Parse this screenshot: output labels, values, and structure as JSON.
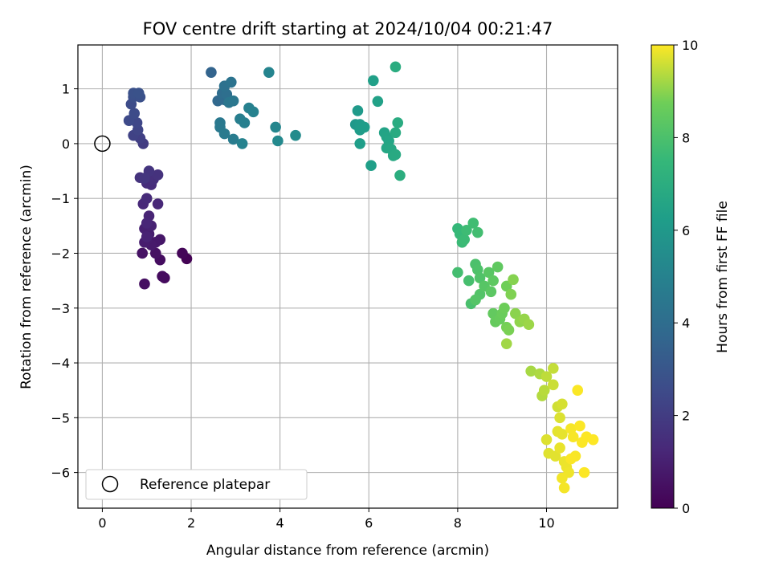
{
  "chart_data": {
    "type": "scatter",
    "title": "FOV centre drift starting at 2024/10/04 00:21:47",
    "xlabel": "Angular distance from reference (arcmin)",
    "ylabel": "Rotation from reference (arcmin)",
    "xlim": [
      -0.55,
      11.6
    ],
    "ylim": [
      -6.65,
      1.8
    ],
    "xticks": [
      0,
      2,
      4,
      6,
      8,
      10
    ],
    "yticks": [
      1,
      0,
      -1,
      -2,
      -3,
      -4,
      -5,
      -6
    ],
    "xtick_labels": [
      "0",
      "2",
      "4",
      "6",
      "8",
      "10"
    ],
    "ytick_labels": [
      "1",
      "0",
      "−1",
      "−2",
      "−3",
      "−4",
      "−5",
      "−6"
    ],
    "grid": true,
    "colormap": "viridis",
    "colorbar": {
      "label": "Hours from first FF file",
      "range": [
        0,
        10
      ],
      "ticks": [
        0,
        2,
        4,
        6,
        8,
        10
      ],
      "tick_labels": [
        "0",
        "2",
        "4",
        "6",
        "8",
        "10"
      ]
    },
    "legend": {
      "placement": "lower-left",
      "entries": [
        "Reference platepar"
      ]
    },
    "reference_point": {
      "name": "Reference platepar",
      "x": 0,
      "y": 0,
      "marker": "open-circle"
    },
    "points": [
      [
        1.9,
        -2.1,
        0.05
      ],
      [
        1.8,
        -2.0,
        0.15
      ],
      [
        1.4,
        -2.45,
        0.3
      ],
      [
        1.35,
        -2.42,
        0.35
      ],
      [
        1.3,
        -2.12,
        0.4
      ],
      [
        1.2,
        -2.0,
        0.5
      ],
      [
        0.95,
        -2.56,
        0.45
      ],
      [
        0.9,
        -2.0,
        0.55
      ],
      [
        1.3,
        -1.75,
        0.7
      ],
      [
        1.2,
        -1.8,
        0.75
      ],
      [
        1.1,
        -1.85,
        0.8
      ],
      [
        1.0,
        -1.75,
        0.85
      ],
      [
        0.95,
        -1.8,
        0.9
      ],
      [
        1.05,
        -1.65,
        0.95
      ],
      [
        0.95,
        -1.55,
        1.0
      ],
      [
        1.1,
        -1.5,
        1.05
      ],
      [
        1.0,
        -1.7,
        1.1
      ],
      [
        1.05,
        -1.32,
        1.15
      ],
      [
        1.0,
        -1.45,
        1.2
      ],
      [
        1.25,
        -1.1,
        1.25
      ],
      [
        0.92,
        -1.1,
        1.3
      ],
      [
        1.0,
        -1.0,
        1.35
      ],
      [
        1.1,
        -0.75,
        1.4
      ],
      [
        1.0,
        -0.72,
        1.45
      ],
      [
        1.15,
        -0.65,
        1.5
      ],
      [
        1.05,
        -0.6,
        1.55
      ],
      [
        1.25,
        -0.57,
        1.6
      ],
      [
        0.85,
        -0.62,
        1.65
      ],
      [
        1.05,
        -0.5,
        1.7
      ],
      [
        0.95,
        -0.63,
        1.75
      ],
      [
        0.92,
        0.0,
        2.0
      ],
      [
        0.85,
        0.1,
        2.1
      ],
      [
        0.7,
        0.15,
        2.2
      ],
      [
        0.8,
        0.25,
        2.3
      ],
      [
        0.78,
        0.38,
        2.4
      ],
      [
        0.6,
        0.42,
        2.5
      ],
      [
        0.72,
        0.55,
        2.55
      ],
      [
        0.65,
        0.72,
        2.6
      ],
      [
        0.7,
        0.85,
        2.7
      ],
      [
        0.85,
        0.85,
        2.75
      ],
      [
        0.7,
        0.92,
        2.8
      ],
      [
        0.82,
        0.92,
        2.85
      ],
      [
        2.45,
        1.3,
        3.6
      ],
      [
        2.6,
        0.78,
        3.8
      ],
      [
        2.75,
        0.8,
        3.9
      ],
      [
        2.7,
        0.92,
        4.0
      ],
      [
        2.8,
        0.9,
        4.1
      ],
      [
        2.75,
        1.05,
        4.2
      ],
      [
        2.9,
        1.12,
        4.3
      ],
      [
        2.85,
        0.75,
        4.4
      ],
      [
        2.95,
        0.78,
        4.45
      ],
      [
        2.65,
        0.38,
        4.5
      ],
      [
        2.65,
        0.3,
        4.55
      ],
      [
        2.75,
        0.18,
        4.6
      ],
      [
        2.95,
        0.08,
        4.7
      ],
      [
        3.1,
        0.45,
        4.8
      ],
      [
        3.2,
        0.38,
        4.85
      ],
      [
        3.3,
        0.65,
        4.9
      ],
      [
        3.4,
        0.58,
        4.95
      ],
      [
        3.15,
        0.0,
        5.0
      ],
      [
        3.75,
        1.3,
        5.1
      ],
      [
        3.9,
        0.3,
        5.2
      ],
      [
        3.95,
        0.05,
        5.3
      ],
      [
        4.35,
        0.15,
        5.4
      ],
      [
        5.7,
        0.35,
        6.0
      ],
      [
        5.75,
        0.6,
        6.05
      ],
      [
        5.8,
        0.35,
        6.1
      ],
      [
        5.8,
        0.25,
        6.15
      ],
      [
        5.9,
        0.3,
        6.2
      ],
      [
        5.8,
        0.0,
        6.25
      ],
      [
        6.05,
        -0.4,
        6.3
      ],
      [
        6.1,
        1.15,
        6.35
      ],
      [
        6.2,
        0.77,
        6.4
      ],
      [
        6.35,
        0.2,
        6.5
      ],
      [
        6.4,
        0.12,
        6.55
      ],
      [
        6.45,
        0.05,
        6.6
      ],
      [
        6.4,
        -0.08,
        6.65
      ],
      [
        6.5,
        -0.1,
        6.7
      ],
      [
        6.55,
        -0.22,
        6.75
      ],
      [
        6.6,
        -0.2,
        6.8
      ],
      [
        6.6,
        0.2,
        6.85
      ],
      [
        6.65,
        0.38,
        6.9
      ],
      [
        6.6,
        1.4,
        6.95
      ],
      [
        6.7,
        -0.58,
        7.0
      ],
      [
        8.0,
        -1.55,
        7.5
      ],
      [
        8.05,
        -1.65,
        7.55
      ],
      [
        8.1,
        -1.8,
        7.6
      ],
      [
        8.15,
        -1.75,
        7.65
      ],
      [
        8.2,
        -1.58,
        7.7
      ],
      [
        8.35,
        -1.45,
        7.75
      ],
      [
        8.45,
        -1.62,
        7.8
      ],
      [
        8.0,
        -2.35,
        7.85
      ],
      [
        8.25,
        -2.5,
        7.9
      ],
      [
        8.3,
        -2.92,
        7.95
      ],
      [
        8.4,
        -2.2,
        8.0
      ],
      [
        8.45,
        -2.3,
        8.05
      ],
      [
        8.5,
        -2.45,
        8.1
      ],
      [
        8.5,
        -2.75,
        8.15
      ],
      [
        8.4,
        -2.85,
        8.2
      ],
      [
        8.6,
        -2.6,
        8.25
      ],
      [
        8.7,
        -2.35,
        8.3
      ],
      [
        8.75,
        -2.7,
        8.35
      ],
      [
        8.8,
        -2.5,
        8.4
      ],
      [
        8.9,
        -2.25,
        8.45
      ],
      [
        8.8,
        -3.1,
        8.5
      ],
      [
        8.85,
        -3.25,
        8.55
      ],
      [
        8.95,
        -3.2,
        8.6
      ],
      [
        9.0,
        -3.1,
        8.65
      ],
      [
        9.05,
        -3.0,
        8.7
      ],
      [
        9.1,
        -2.6,
        8.75
      ],
      [
        9.1,
        -3.35,
        8.8
      ],
      [
        9.15,
        -3.4,
        8.85
      ],
      [
        9.2,
        -2.75,
        8.9
      ],
      [
        9.25,
        -2.48,
        8.95
      ],
      [
        9.3,
        -3.1,
        9.0
      ],
      [
        9.4,
        -3.25,
        9.05
      ],
      [
        9.5,
        -3.2,
        9.1
      ],
      [
        9.6,
        -3.3,
        9.15
      ],
      [
        9.1,
        -3.65,
        9.2
      ],
      [
        9.65,
        -4.15,
        9.25
      ],
      [
        9.85,
        -4.2,
        9.3
      ],
      [
        9.9,
        -4.6,
        9.35
      ],
      [
        9.95,
        -4.5,
        9.4
      ],
      [
        10.0,
        -4.25,
        9.45
      ],
      [
        10.15,
        -4.1,
        9.5
      ],
      [
        10.15,
        -4.4,
        9.55
      ],
      [
        10.25,
        -4.8,
        9.6
      ],
      [
        10.35,
        -4.75,
        9.65
      ],
      [
        10.3,
        -5.0,
        9.7
      ],
      [
        10.0,
        -5.4,
        9.72
      ],
      [
        10.05,
        -5.65,
        9.74
      ],
      [
        10.2,
        -5.7,
        9.76
      ],
      [
        10.25,
        -5.25,
        9.78
      ],
      [
        10.35,
        -5.3,
        9.8
      ],
      [
        10.3,
        -5.55,
        9.82
      ],
      [
        10.4,
        -5.8,
        9.84
      ],
      [
        10.45,
        -5.9,
        9.86
      ],
      [
        10.5,
        -6.0,
        9.88
      ],
      [
        10.35,
        -6.1,
        9.9
      ],
      [
        10.4,
        -6.28,
        9.92
      ],
      [
        10.55,
        -5.2,
        9.94
      ],
      [
        10.6,
        -5.35,
        9.95
      ],
      [
        10.65,
        -5.7,
        9.96
      ],
      [
        10.55,
        -5.75,
        9.97
      ],
      [
        10.7,
        -4.5,
        9.975
      ],
      [
        10.75,
        -5.15,
        9.98
      ],
      [
        10.8,
        -5.45,
        9.985
      ],
      [
        10.85,
        -6.0,
        9.99
      ],
      [
        10.9,
        -5.35,
        9.995
      ],
      [
        11.05,
        -5.4,
        10.0
      ]
    ]
  }
}
